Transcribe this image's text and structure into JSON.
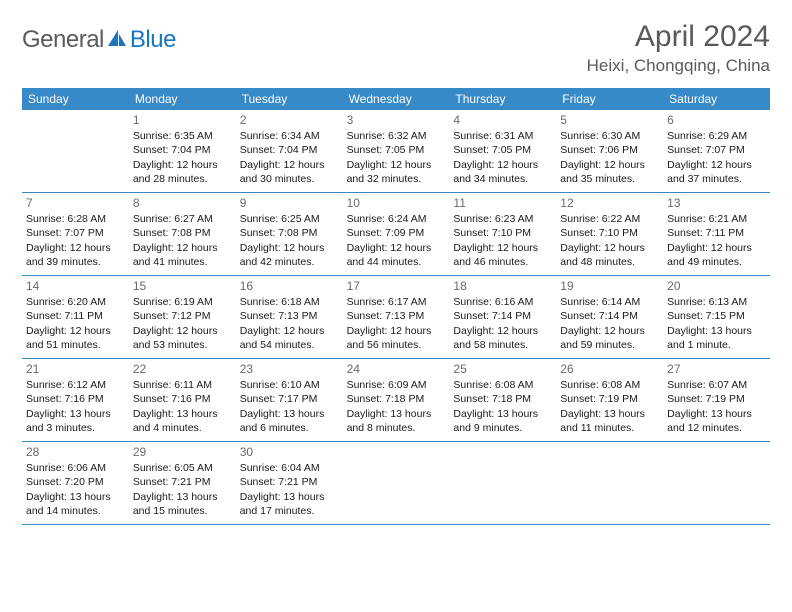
{
  "logo": {
    "part1": "General",
    "part2": "Blue"
  },
  "title": "April 2024",
  "location": "Heixi, Chongqing, China",
  "colors": {
    "header_bg": "#3789c7",
    "header_text": "#ffffff",
    "logo_gray": "#5a5a5a",
    "logo_blue": "#1976c1",
    "title_color": "#5a5a5a",
    "day_num_color": "#6a6a6a",
    "body_text": "#1a1a1a",
    "row_border": "#3789c7"
  },
  "weekdays": [
    "Sunday",
    "Monday",
    "Tuesday",
    "Wednesday",
    "Thursday",
    "Friday",
    "Saturday"
  ],
  "weeks": [
    [
      {
        "num": "",
        "l1": "",
        "l2": "",
        "l3": "",
        "l4": ""
      },
      {
        "num": "1",
        "l1": "Sunrise: 6:35 AM",
        "l2": "Sunset: 7:04 PM",
        "l3": "Daylight: 12 hours",
        "l4": "and 28 minutes."
      },
      {
        "num": "2",
        "l1": "Sunrise: 6:34 AM",
        "l2": "Sunset: 7:04 PM",
        "l3": "Daylight: 12 hours",
        "l4": "and 30 minutes."
      },
      {
        "num": "3",
        "l1": "Sunrise: 6:32 AM",
        "l2": "Sunset: 7:05 PM",
        "l3": "Daylight: 12 hours",
        "l4": "and 32 minutes."
      },
      {
        "num": "4",
        "l1": "Sunrise: 6:31 AM",
        "l2": "Sunset: 7:05 PM",
        "l3": "Daylight: 12 hours",
        "l4": "and 34 minutes."
      },
      {
        "num": "5",
        "l1": "Sunrise: 6:30 AM",
        "l2": "Sunset: 7:06 PM",
        "l3": "Daylight: 12 hours",
        "l4": "and 35 minutes."
      },
      {
        "num": "6",
        "l1": "Sunrise: 6:29 AM",
        "l2": "Sunset: 7:07 PM",
        "l3": "Daylight: 12 hours",
        "l4": "and 37 minutes."
      }
    ],
    [
      {
        "num": "7",
        "l1": "Sunrise: 6:28 AM",
        "l2": "Sunset: 7:07 PM",
        "l3": "Daylight: 12 hours",
        "l4": "and 39 minutes."
      },
      {
        "num": "8",
        "l1": "Sunrise: 6:27 AM",
        "l2": "Sunset: 7:08 PM",
        "l3": "Daylight: 12 hours",
        "l4": "and 41 minutes."
      },
      {
        "num": "9",
        "l1": "Sunrise: 6:25 AM",
        "l2": "Sunset: 7:08 PM",
        "l3": "Daylight: 12 hours",
        "l4": "and 42 minutes."
      },
      {
        "num": "10",
        "l1": "Sunrise: 6:24 AM",
        "l2": "Sunset: 7:09 PM",
        "l3": "Daylight: 12 hours",
        "l4": "and 44 minutes."
      },
      {
        "num": "11",
        "l1": "Sunrise: 6:23 AM",
        "l2": "Sunset: 7:10 PM",
        "l3": "Daylight: 12 hours",
        "l4": "and 46 minutes."
      },
      {
        "num": "12",
        "l1": "Sunrise: 6:22 AM",
        "l2": "Sunset: 7:10 PM",
        "l3": "Daylight: 12 hours",
        "l4": "and 48 minutes."
      },
      {
        "num": "13",
        "l1": "Sunrise: 6:21 AM",
        "l2": "Sunset: 7:11 PM",
        "l3": "Daylight: 12 hours",
        "l4": "and 49 minutes."
      }
    ],
    [
      {
        "num": "14",
        "l1": "Sunrise: 6:20 AM",
        "l2": "Sunset: 7:11 PM",
        "l3": "Daylight: 12 hours",
        "l4": "and 51 minutes."
      },
      {
        "num": "15",
        "l1": "Sunrise: 6:19 AM",
        "l2": "Sunset: 7:12 PM",
        "l3": "Daylight: 12 hours",
        "l4": "and 53 minutes."
      },
      {
        "num": "16",
        "l1": "Sunrise: 6:18 AM",
        "l2": "Sunset: 7:13 PM",
        "l3": "Daylight: 12 hours",
        "l4": "and 54 minutes."
      },
      {
        "num": "17",
        "l1": "Sunrise: 6:17 AM",
        "l2": "Sunset: 7:13 PM",
        "l3": "Daylight: 12 hours",
        "l4": "and 56 minutes."
      },
      {
        "num": "18",
        "l1": "Sunrise: 6:16 AM",
        "l2": "Sunset: 7:14 PM",
        "l3": "Daylight: 12 hours",
        "l4": "and 58 minutes."
      },
      {
        "num": "19",
        "l1": "Sunrise: 6:14 AM",
        "l2": "Sunset: 7:14 PM",
        "l3": "Daylight: 12 hours",
        "l4": "and 59 minutes."
      },
      {
        "num": "20",
        "l1": "Sunrise: 6:13 AM",
        "l2": "Sunset: 7:15 PM",
        "l3": "Daylight: 13 hours",
        "l4": "and 1 minute."
      }
    ],
    [
      {
        "num": "21",
        "l1": "Sunrise: 6:12 AM",
        "l2": "Sunset: 7:16 PM",
        "l3": "Daylight: 13 hours",
        "l4": "and 3 minutes."
      },
      {
        "num": "22",
        "l1": "Sunrise: 6:11 AM",
        "l2": "Sunset: 7:16 PM",
        "l3": "Daylight: 13 hours",
        "l4": "and 4 minutes."
      },
      {
        "num": "23",
        "l1": "Sunrise: 6:10 AM",
        "l2": "Sunset: 7:17 PM",
        "l3": "Daylight: 13 hours",
        "l4": "and 6 minutes."
      },
      {
        "num": "24",
        "l1": "Sunrise: 6:09 AM",
        "l2": "Sunset: 7:18 PM",
        "l3": "Daylight: 13 hours",
        "l4": "and 8 minutes."
      },
      {
        "num": "25",
        "l1": "Sunrise: 6:08 AM",
        "l2": "Sunset: 7:18 PM",
        "l3": "Daylight: 13 hours",
        "l4": "and 9 minutes."
      },
      {
        "num": "26",
        "l1": "Sunrise: 6:08 AM",
        "l2": "Sunset: 7:19 PM",
        "l3": "Daylight: 13 hours",
        "l4": "and 11 minutes."
      },
      {
        "num": "27",
        "l1": "Sunrise: 6:07 AM",
        "l2": "Sunset: 7:19 PM",
        "l3": "Daylight: 13 hours",
        "l4": "and 12 minutes."
      }
    ],
    [
      {
        "num": "28",
        "l1": "Sunrise: 6:06 AM",
        "l2": "Sunset: 7:20 PM",
        "l3": "Daylight: 13 hours",
        "l4": "and 14 minutes."
      },
      {
        "num": "29",
        "l1": "Sunrise: 6:05 AM",
        "l2": "Sunset: 7:21 PM",
        "l3": "Daylight: 13 hours",
        "l4": "and 15 minutes."
      },
      {
        "num": "30",
        "l1": "Sunrise: 6:04 AM",
        "l2": "Sunset: 7:21 PM",
        "l3": "Daylight: 13 hours",
        "l4": "and 17 minutes."
      },
      {
        "num": "",
        "l1": "",
        "l2": "",
        "l3": "",
        "l4": ""
      },
      {
        "num": "",
        "l1": "",
        "l2": "",
        "l3": "",
        "l4": ""
      },
      {
        "num": "",
        "l1": "",
        "l2": "",
        "l3": "",
        "l4": ""
      },
      {
        "num": "",
        "l1": "",
        "l2": "",
        "l3": "",
        "l4": ""
      }
    ]
  ]
}
